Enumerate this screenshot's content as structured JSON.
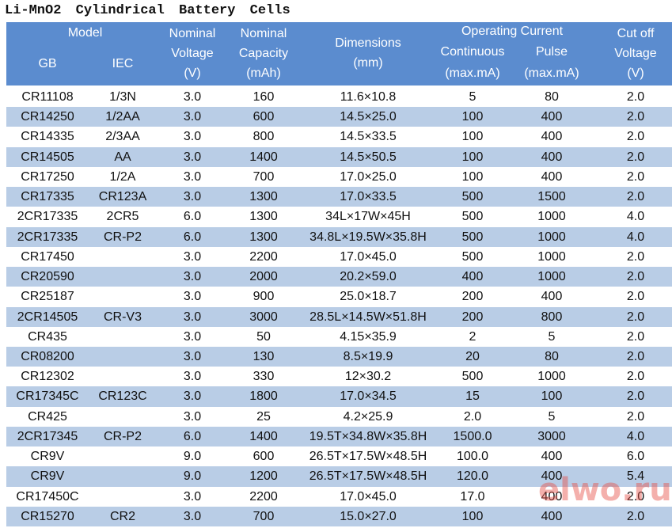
{
  "title": "Li-MnO2 Cylindrical Battery Cells",
  "header": {
    "model": "Model",
    "gb": "GB",
    "iec": "IEC",
    "voltage": [
      "Nominal",
      "Voltage",
      "(V)"
    ],
    "capacity": [
      "Nominal",
      "Capacity",
      "(mAh)"
    ],
    "dimensions": [
      "Dimensions",
      "(mm)"
    ],
    "operating_current": "Operating Current",
    "continuous": [
      "Continuous",
      "(max.mA)"
    ],
    "pulse": [
      "Pulse",
      "(max.mA)"
    ],
    "cutoff": [
      "Cut off",
      "Voltage",
      "(V)"
    ]
  },
  "table": {
    "rows": [
      [
        "CR11108",
        "1/3N",
        "3.0",
        "160",
        "11.6×10.8",
        "5",
        "80",
        "2.0"
      ],
      [
        "CR14250",
        "1/2AA",
        "3.0",
        "600",
        "14.5×25.0",
        "100",
        "400",
        "2.0"
      ],
      [
        "CR14335",
        "2/3AA",
        "3.0",
        "800",
        "14.5×33.5",
        "100",
        "400",
        "2.0"
      ],
      [
        "CR14505",
        "AA",
        "3.0",
        "1400",
        "14.5×50.5",
        "100",
        "400",
        "2.0"
      ],
      [
        "CR17250",
        "1/2A",
        "3.0",
        "700",
        "17.0×25.0",
        "100",
        "400",
        "2.0"
      ],
      [
        "CR17335",
        "CR123A",
        "3.0",
        "1300",
        "17.0×33.5",
        "500",
        "1500",
        "2.0"
      ],
      [
        "2CR17335",
        "2CR5",
        "6.0",
        "1300",
        "34L×17W×45H",
        "500",
        "1000",
        "4.0"
      ],
      [
        "2CR17335",
        "CR-P2",
        "6.0",
        "1300",
        "34.8L×19.5W×35.8H",
        "500",
        "1000",
        "4.0"
      ],
      [
        "CR17450",
        null,
        "3.0",
        "2200",
        "17.0×45.0",
        "500",
        "1000",
        "2.0"
      ],
      [
        "CR20590",
        null,
        "3.0",
        "2000",
        "20.2×59.0",
        "400",
        "1000",
        "2.0"
      ],
      [
        "CR25187",
        null,
        "3.0",
        "900",
        "25.0×18.7",
        "200",
        "400",
        "2.0"
      ],
      [
        "2CR14505",
        "CR-V3",
        "3.0",
        "3000",
        "28.5L×14.5W×51.8H",
        "200",
        "800",
        "2.0"
      ],
      [
        "CR435",
        null,
        "3.0",
        "50",
        "4.15×35.9",
        "2",
        "5",
        "2.0"
      ],
      [
        "CR08200",
        null,
        "3.0",
        "130",
        "8.5×19.9",
        "20",
        "80",
        "2.0"
      ],
      [
        "CR12302",
        null,
        "3.0",
        "330",
        "12×30.2",
        "500",
        "1000",
        "2.0"
      ],
      [
        "CR17345C",
        "CR123C",
        "3.0",
        "1800",
        "17.0×34.5",
        "15",
        "100",
        "2.0"
      ],
      [
        "CR425",
        null,
        "3.0",
        "25",
        "4.2×25.9",
        "2.0",
        "5",
        "2.0"
      ],
      [
        "2CR17345",
        "CR-P2",
        "6.0",
        "1400",
        "19.5T×34.8W×35.8H",
        "1500.0",
        "3000",
        "4.0"
      ],
      [
        "CR9V",
        null,
        "9.0",
        "600",
        "26.5T×17.5W×48.5H",
        "100.0",
        "400",
        "6.0"
      ],
      [
        "CR9V",
        null,
        "9.0",
        "1200",
        "26.5T×17.5W×48.5H",
        "120.0",
        "400",
        "5.4"
      ],
      [
        "CR17450C",
        null,
        "3.0",
        "2200",
        "17.0×45.0",
        "17.0",
        "400",
        "2.0"
      ],
      [
        "CR15270",
        "CR2",
        "3.0",
        "700",
        "15.0×27.0",
        "100",
        "400",
        "2.0"
      ]
    ]
  },
  "watermark": "elwo.ru"
}
